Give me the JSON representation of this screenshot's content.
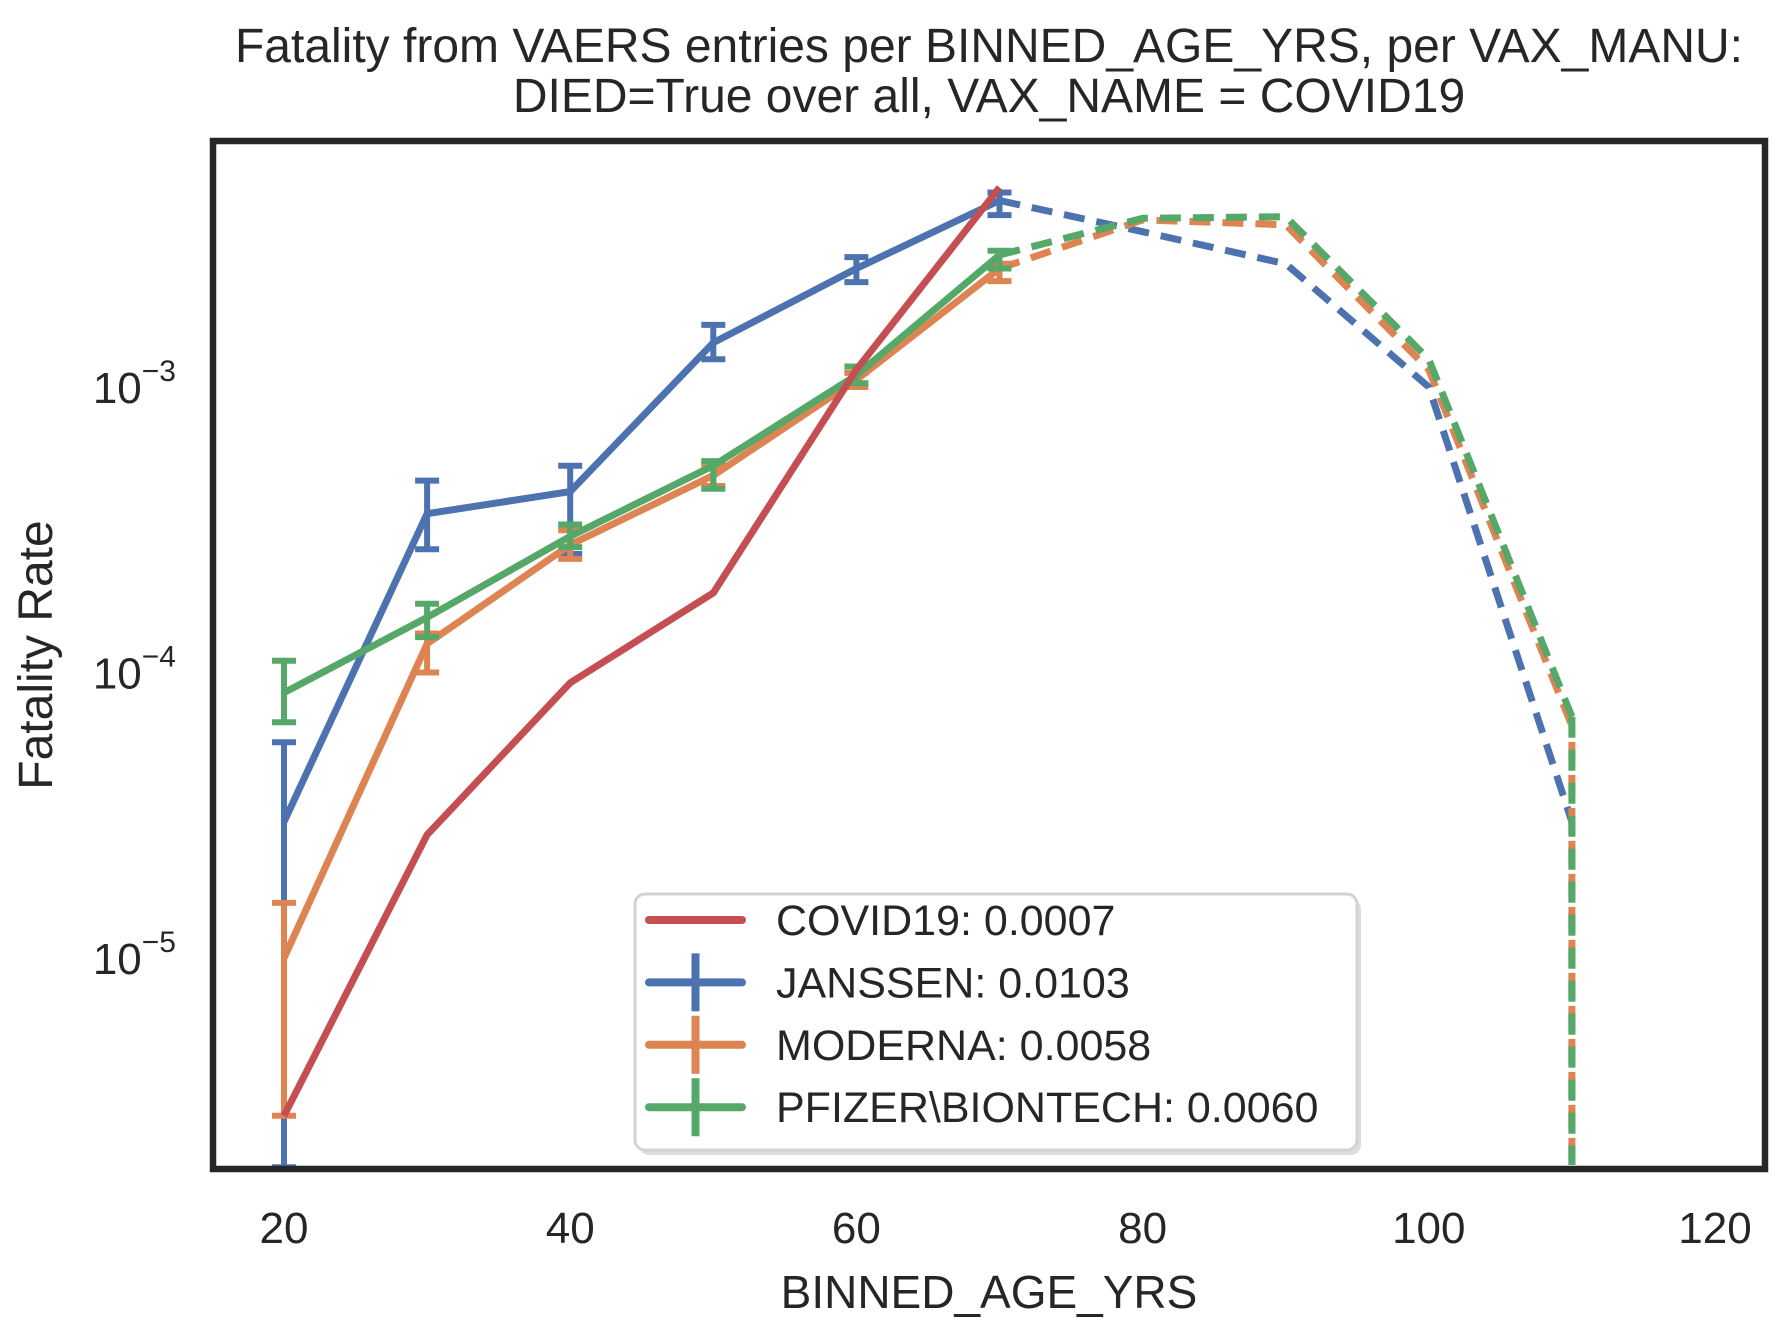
{
  "figure": {
    "title_line1": "Fatality from VAERS entries per BINNED_AGE_YRS, per VAX_MANU:",
    "title_line2": "DIED=True over all, VAX_NAME = COVID19",
    "background": "#ffffff",
    "spine_color": "#262626",
    "text_color": "#262626",
    "legend_border_color": "#d3d3d3",
    "legend_shadow_color": "#dedede"
  },
  "chart_data": {
    "type": "line",
    "yscale": "log",
    "title": "Fatality from VAERS entries per BINNED_AGE_YRS, per VAX_MANU: DIED=True over all, VAX_NAME = COVID19",
    "xlabel": "BINNED_AGE_YRS",
    "ylabel": "Fatality Rate",
    "x_ticks": [
      20,
      40,
      60,
      80,
      100,
      120
    ],
    "y_tick_exponents": [
      -3,
      -4,
      -5
    ],
    "xlim": [
      15,
      123
    ],
    "ylim_exponents": [
      -5.74,
      -2.14
    ],
    "grid": false,
    "legend_position": "lower center-right",
    "x": [
      20,
      30,
      40,
      50,
      60,
      70,
      80,
      90,
      100,
      110
    ],
    "series": [
      {
        "name": "COVID19",
        "legend_label": "COVID19: 0.0007",
        "color": "#C44E52",
        "marker": "line",
        "dashed_from": null,
        "drop_at": null,
        "values": [
          2.8e-06,
          2.7e-05,
          9.2e-05,
          0.00019,
          0.00115,
          0.005,
          null,
          null,
          null,
          null
        ],
        "err_lo": [
          null,
          null,
          null,
          null,
          null,
          null,
          null,
          null,
          null,
          null
        ],
        "err_hi": [
          null,
          null,
          null,
          null,
          null,
          null,
          null,
          null,
          null,
          null
        ]
      },
      {
        "name": "JANSSEN",
        "legend_label": "JANSSEN: 0.0103",
        "color": "#4C72B0",
        "marker": "errorbar",
        "dashed_from": 70,
        "drop_at": 110,
        "values": [
          3e-05,
          0.00036,
          0.00043,
          0.00143,
          0.0026,
          0.0045,
          0.0035,
          0.0027,
          0.001,
          3e-05
        ],
        "err_lo": [
          1.85e-06,
          0.00027,
          0.00026,
          0.00125,
          0.00233,
          0.004,
          null,
          null,
          null,
          null
        ],
        "err_hi": [
          5.7e-05,
          0.00047,
          0.00053,
          0.00165,
          0.00285,
          0.0048,
          null,
          null,
          null,
          null
        ]
      },
      {
        "name": "MODERNA",
        "legend_label": "MODERNA: 0.0058",
        "color": "#DD8452",
        "marker": "errorbar",
        "dashed_from": 70,
        "drop_at": 110,
        "values": [
          1e-05,
          0.000126,
          0.00028,
          0.00049,
          0.00106,
          0.0026,
          0.00385,
          0.0037,
          0.00115,
          6.5e-05
        ],
        "err_lo": [
          2.8e-06,
          0.0001,
          0.00025,
          0.00045,
          0.001,
          0.00235,
          null,
          null,
          null,
          null
        ],
        "err_hi": [
          1.56e-05,
          0.000137,
          0.000315,
          0.00053,
          0.00112,
          0.0027,
          null,
          null,
          null,
          null
        ]
      },
      {
        "name": "PFIZER\\BIONTECH",
        "legend_label": "PFIZER\\BIONTECH: 0.0060",
        "color": "#55A868",
        "marker": "errorbar",
        "dashed_from": 70,
        "drop_at": 110,
        "values": [
          8.5e-05,
          0.000156,
          0.0003,
          0.00053,
          0.0011,
          0.0029,
          0.0039,
          0.00395,
          0.00125,
          7e-05
        ],
        "err_lo": [
          6.7e-05,
          0.000133,
          0.000275,
          0.00044,
          0.00103,
          0.0026,
          null,
          null,
          null,
          null
        ],
        "err_hi": [
          0.00011,
          0.000174,
          0.00033,
          0.00055,
          0.00118,
          0.003,
          null,
          null,
          null,
          null
        ]
      }
    ],
    "z_order": [
      1,
      2,
      3,
      0
    ],
    "legend_order": [
      0,
      1,
      2,
      3
    ]
  }
}
